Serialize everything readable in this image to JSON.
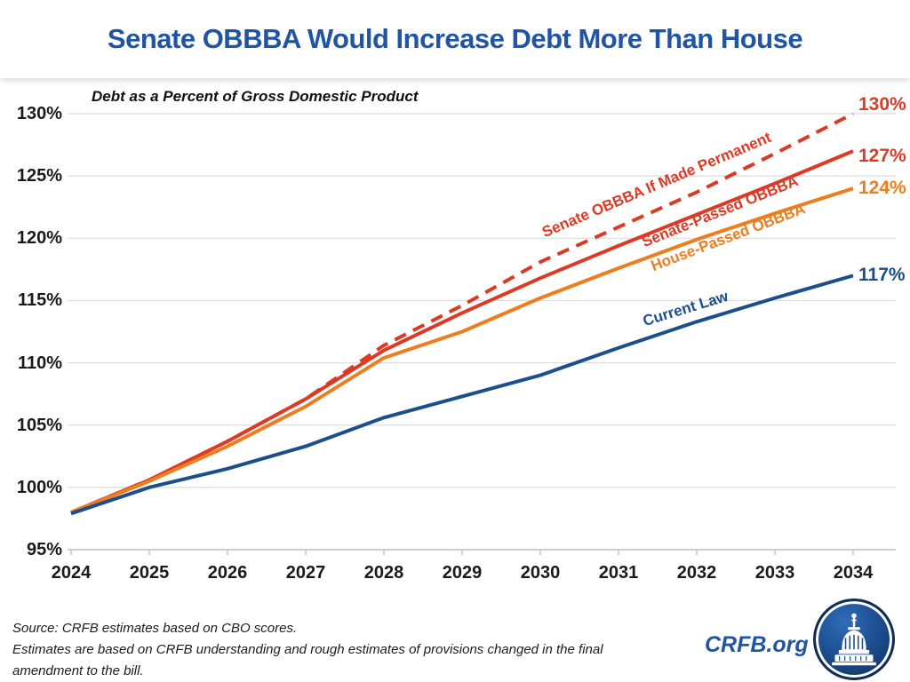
{
  "chart_data": {
    "type": "line",
    "title": "Senate OBBBA Would Increase Debt More Than House",
    "subtitle": "Debt as a Percent of Gross Domestic Product",
    "xlabel": "",
    "ylabel": "Debt as a Percent of GDP",
    "x": [
      "2024",
      "2025",
      "2026",
      "2027",
      "2028",
      "2029",
      "2030",
      "2031",
      "2032",
      "2033",
      "2034"
    ],
    "yticks": [
      "95%",
      "100%",
      "105%",
      "110%",
      "115%",
      "120%",
      "125%",
      "130%"
    ],
    "ylim": [
      95,
      130
    ],
    "grid": true,
    "legend_position": "inline-labels",
    "series": [
      {
        "name": "Senate OBBBA If Made Permanent",
        "color": "#DD3A26",
        "dashed": true,
        "end_label": "130%",
        "values": [
          98.0,
          100.6,
          103.7,
          107.1,
          111.4,
          114.6,
          118.1,
          120.9,
          123.7,
          126.8,
          130.0
        ]
      },
      {
        "name": "Senate-Passed OBBBA",
        "color": "#DD3A26",
        "dashed": false,
        "end_label": "127%",
        "values": [
          98.0,
          100.6,
          103.7,
          107.1,
          111.0,
          114.0,
          116.8,
          119.4,
          121.9,
          124.4,
          127.0
        ]
      },
      {
        "name": "House-Passed OBBBA",
        "color": "#EE7D1E",
        "dashed": false,
        "end_label": "124%",
        "values": [
          98.0,
          100.5,
          103.3,
          106.5,
          110.4,
          112.5,
          115.2,
          117.6,
          119.9,
          122.0,
          124.0
        ]
      },
      {
        "name": "Current Law",
        "color": "#1A4F8C",
        "dashed": false,
        "end_label": "117%",
        "values": [
          97.9,
          100.0,
          101.5,
          103.3,
          105.6,
          107.3,
          109.0,
          111.2,
          113.3,
          115.2,
          117.0
        ]
      }
    ]
  },
  "footer": {
    "source_lines": [
      "Source: CRFB estimates based on CBO scores.",
      "Estimates are based on CRFB understanding and rough estimates of provisions changed in the final",
      "amendment to the bill."
    ],
    "brand": "CRFB.org"
  },
  "colors": {
    "title": "#1F55A4",
    "brand": "#1F55A4",
    "gridline": "#DCDCDC",
    "axis": "#BFBFBF",
    "axis_text": "#1A1A1A"
  }
}
